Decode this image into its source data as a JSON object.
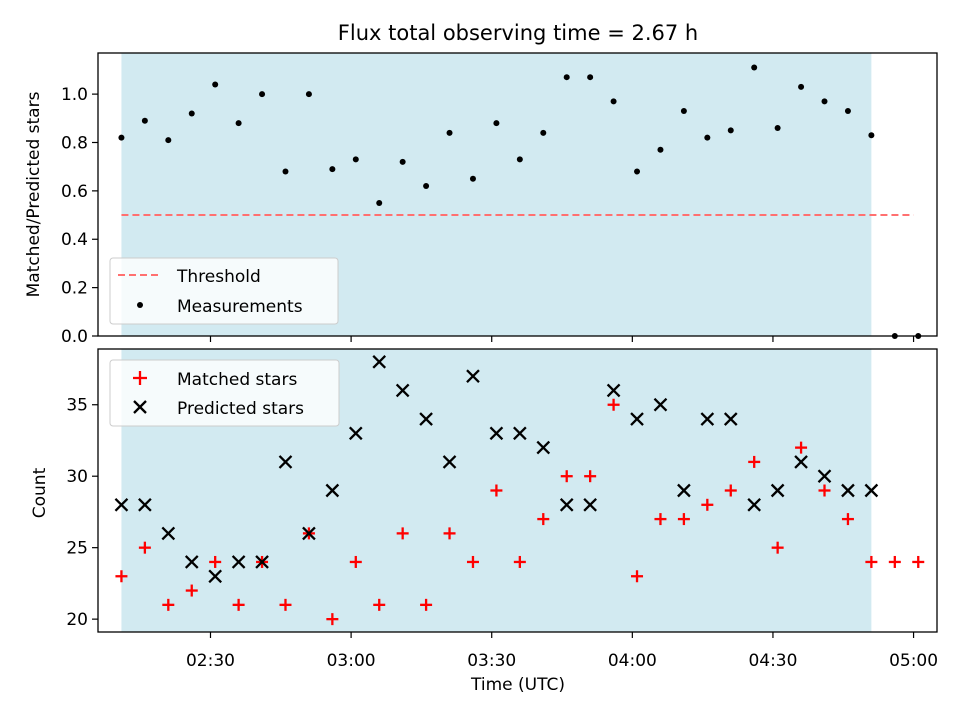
{
  "chart_data": [
    {
      "type": "scatter",
      "title": "Flux total observing time = 2.67 h",
      "ylabel": "Matched/Predicted stars",
      "xlabel": "",
      "xlim": [
        "02:06",
        "05:05"
      ],
      "ylim": [
        0,
        1.17
      ],
      "x_ticks": [
        "02:30",
        "03:00",
        "03:30",
        "04:00",
        "04:30",
        "05:00"
      ],
      "y_ticks": [
        "0.0",
        "0.2",
        "0.4",
        "0.6",
        "0.8",
        "1.0"
      ],
      "shaded_interval": [
        "02:11",
        "04:51"
      ],
      "shade_color": "#add8e6",
      "threshold": {
        "name": "Threshold",
        "value": 0.5,
        "x_range": [
          "02:11",
          "05:00"
        ],
        "color": "#ff7070"
      },
      "legend": {
        "position": "lower-left",
        "entries": [
          "Threshold",
          "Measurements"
        ]
      },
      "series": [
        {
          "name": "Measurements",
          "color": "#000000",
          "x": [
            "02:11",
            "02:16",
            "02:21",
            "02:26",
            "02:31",
            "02:36",
            "02:41",
            "02:46",
            "02:51",
            "02:56",
            "03:01",
            "03:06",
            "03:11",
            "03:16",
            "03:21",
            "03:26",
            "03:31",
            "03:36",
            "03:41",
            "03:46",
            "03:51",
            "03:56",
            "04:01",
            "04:06",
            "04:11",
            "04:16",
            "04:21",
            "04:26",
            "04:31",
            "04:36",
            "04:41",
            "04:46",
            "04:51",
            "04:56",
            "05:01"
          ],
          "y": [
            0.82,
            0.89,
            0.81,
            0.92,
            1.04,
            0.88,
            1.0,
            0.68,
            1.0,
            0.69,
            0.73,
            0.55,
            0.72,
            0.62,
            0.84,
            0.65,
            0.88,
            0.73,
            0.84,
            1.07,
            1.07,
            0.97,
            0.68,
            0.77,
            0.93,
            0.82,
            0.85,
            1.11,
            0.86,
            1.03,
            0.97,
            0.93,
            0.83,
            0.0,
            0.0
          ]
        }
      ]
    },
    {
      "type": "scatter",
      "title": "",
      "ylabel": "Count",
      "xlabel": "Time (UTC)",
      "xlim": [
        "02:06",
        "05:05"
      ],
      "ylim": [
        19.1,
        38.9
      ],
      "x_ticks": [
        "02:30",
        "03:00",
        "03:30",
        "04:00",
        "04:30",
        "05:00"
      ],
      "y_ticks": [
        "20",
        "25",
        "30",
        "35"
      ],
      "shaded_interval": [
        "02:11",
        "04:51"
      ],
      "shade_color": "#add8e6",
      "legend": {
        "position": "top-left",
        "entries": [
          "Matched stars",
          "Predicted stars"
        ]
      },
      "series": [
        {
          "name": "Matched stars",
          "marker": "+",
          "color": "#ff0000",
          "x": [
            "02:11",
            "02:16",
            "02:21",
            "02:26",
            "02:31",
            "02:36",
            "02:41",
            "02:46",
            "02:51",
            "02:56",
            "03:01",
            "03:06",
            "03:11",
            "03:16",
            "03:21",
            "03:26",
            "03:31",
            "03:36",
            "03:41",
            "03:46",
            "03:51",
            "03:56",
            "04:01",
            "04:06",
            "04:11",
            "04:16",
            "04:21",
            "04:26",
            "04:31",
            "04:36",
            "04:41",
            "04:46",
            "04:51",
            "04:56",
            "05:01"
          ],
          "y": [
            23,
            25,
            21,
            22,
            24,
            21,
            24,
            21,
            26,
            20,
            24,
            21,
            26,
            21,
            26,
            24,
            29,
            24,
            27,
            30,
            30,
            35,
            23,
            27,
            27,
            28,
            29,
            31,
            25,
            32,
            29,
            27,
            24,
            24,
            24
          ]
        },
        {
          "name": "Predicted stars",
          "marker": "x",
          "color": "#000000",
          "x": [
            "02:11",
            "02:16",
            "02:21",
            "02:26",
            "02:31",
            "02:36",
            "02:41",
            "02:46",
            "02:51",
            "02:56",
            "03:01",
            "03:06",
            "03:11",
            "03:16",
            "03:21",
            "03:26",
            "03:31",
            "03:36",
            "03:41",
            "03:46",
            "03:51",
            "03:56",
            "04:01",
            "04:06",
            "04:11",
            "04:16",
            "04:21",
            "04:26",
            "04:31",
            "04:36",
            "04:41",
            "04:46",
            "04:51"
          ],
          "y": [
            28,
            28,
            26,
            24,
            23,
            24,
            24,
            31,
            26,
            29,
            33,
            38,
            36,
            34,
            31,
            37,
            33,
            33,
            32,
            28,
            28,
            36,
            34,
            35,
            29,
            34,
            34,
            28,
            29,
            31,
            30,
            29,
            29
          ]
        }
      ]
    }
  ]
}
